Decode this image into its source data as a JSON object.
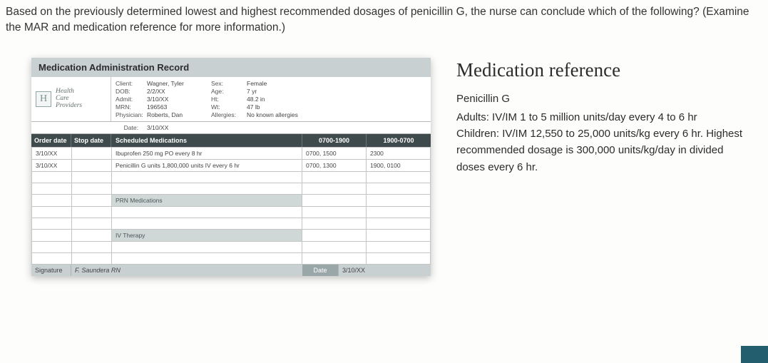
{
  "question": "Based on the previously determined lowest and highest recommended dosages of penicillin G, the nurse can conclude which of the following? (Examine the MAR and medication reference for more information.)",
  "mar": {
    "title": "Medication Administration Record",
    "provider": {
      "logo": "H",
      "line1": "Health",
      "line2": "Care",
      "line3": "Providers"
    },
    "patient": {
      "client_lbl": "Client:",
      "client": "Wagner, Tyler",
      "dob_lbl": "DOB:",
      "dob": "2/2/XX",
      "admit_lbl": "Admit:",
      "admit": "3/10/XX",
      "mrn_lbl": "MRN:",
      "mrn": "196563",
      "phys_lbl": "Physician:",
      "phys": "Roberts, Dan",
      "sex_lbl": "Sex:",
      "sex": "Female",
      "age_lbl": "Age:",
      "age": "7 yr",
      "ht_lbl": "Ht:",
      "ht": "48.2 in",
      "wt_lbl": "Wt:",
      "wt": "47 lb",
      "allerg_lbl": "Allergies:",
      "allerg": "No known allergies"
    },
    "date_lbl": "Date:",
    "date_val": "3/10/XX",
    "cols": {
      "order": "Order date",
      "stop": "Stop date",
      "med": "Scheduled Medications",
      "t1": "0700-1900",
      "t2": "1900-0700"
    },
    "rows": [
      {
        "order": "3/10/XX",
        "stop": "",
        "med": "Ibuprofen 250 mg PO every 8 hr",
        "t1": "0700, 1500",
        "t2": "2300"
      },
      {
        "order": "3/10/XX",
        "stop": "",
        "med": "Penicillin G units 1,800,000 units IV every 6 hr",
        "t1": "0700, 1300",
        "t2": "1900, 0100"
      }
    ],
    "prn_label": "PRN Medications",
    "iv_label": "IV Therapy",
    "sig_label": "Signature",
    "sig_name": "F. Saundera RN",
    "sig_date_lbl": "Date",
    "sig_date": "3/10/XX"
  },
  "reference": {
    "heading": "Medication reference",
    "drug": "Penicillin G",
    "adults": "Adults: IV/IM 1 to 5 million units/day every 4 to 6 hr",
    "children": "Children: IV/IM 12,550 to 25,000 units/kg every 6 hr. Highest recommended dosage is 300,000 units/kg/day in divided doses every 6 hr."
  }
}
